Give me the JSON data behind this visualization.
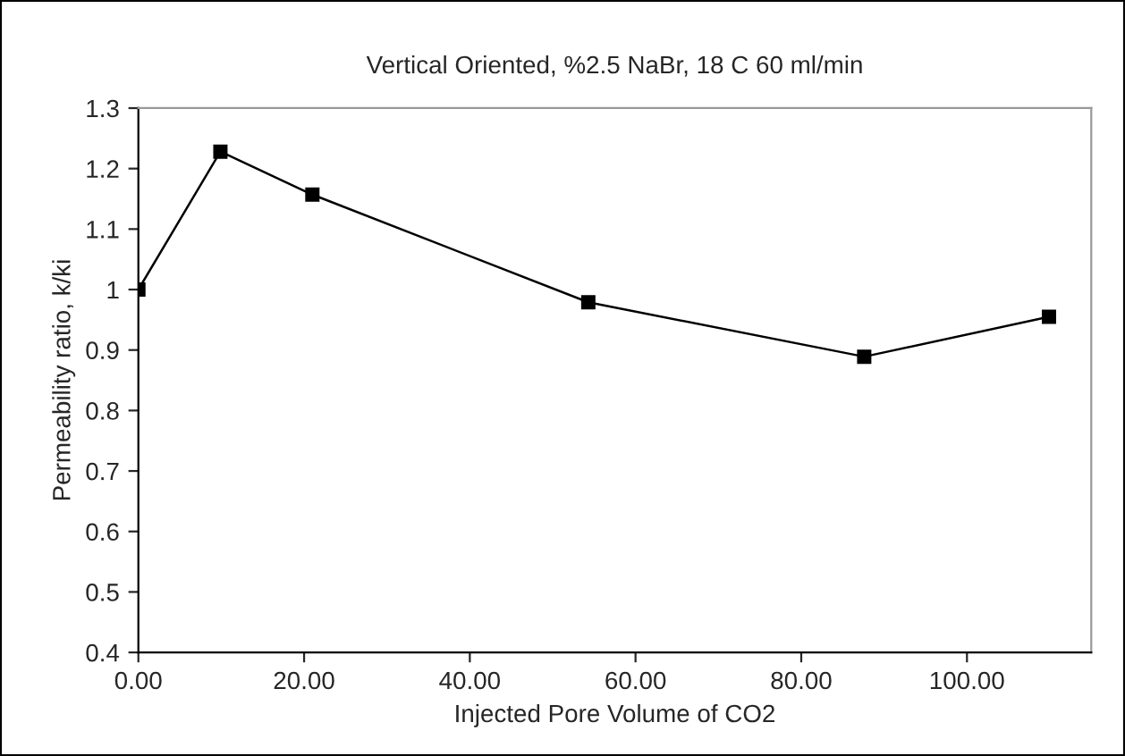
{
  "chart_data": {
    "type": "line",
    "title": "Vertical Oriented, %2.5 NaBr, 18 C 60 ml/min",
    "xlabel": "Injected Pore Volume of CO2",
    "ylabel": "Permeability ratio, k/ki",
    "x": [
      0,
      9.9,
      21.0,
      54.3,
      87.6,
      109.9
    ],
    "series": [
      {
        "color": "#000000",
        "values": [
          1.0,
          1.228,
          1.157,
          0.979,
          0.889,
          0.955
        ]
      }
    ],
    "xlim": [
      0,
      115
    ],
    "xticks": [
      {
        "value": 0,
        "label": "0.00"
      },
      {
        "value": 20,
        "label": "20.00"
      },
      {
        "value": 40,
        "label": "40.00"
      },
      {
        "value": 60,
        "label": "60.00"
      },
      {
        "value": 80,
        "label": "80.00"
      },
      {
        "value": 100,
        "label": "100.00"
      }
    ],
    "ylim": [
      0.4,
      1.3
    ],
    "yticks": [
      0.4,
      0.5,
      0.6,
      0.7,
      0.8,
      0.9,
      1,
      1.1,
      1.2,
      1.3
    ],
    "marker": "square",
    "line_style": "solid",
    "grid": false
  }
}
